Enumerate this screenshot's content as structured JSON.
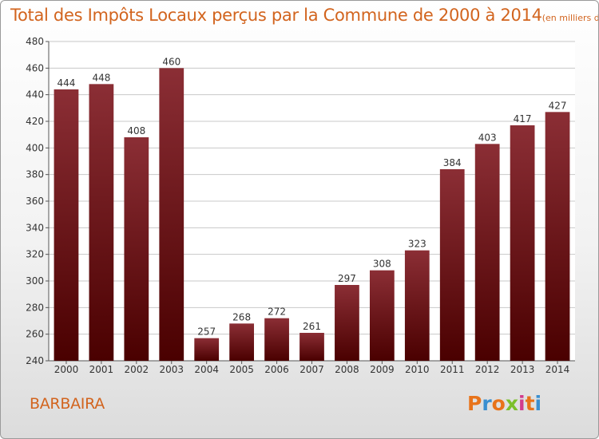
{
  "header": {
    "title": "Total des Impôts Locaux perçus par la Commune de 2000 à 2014",
    "unit": "(en milliers d'€)"
  },
  "footer": {
    "commune": "BARBAIRA",
    "logo_text": "Proxiti"
  },
  "colors": {
    "title": "#d2641e",
    "bar_top": "#8b2e35",
    "bar_bottom": "#4a0000",
    "logo_letters": [
      "#e8731a",
      "#3a8fd0",
      "#e8731a",
      "#7bbf2a",
      "#d23c8c",
      "#e8731a",
      "#3a8fd0"
    ]
  },
  "chart_data": {
    "type": "bar",
    "categories": [
      "2000",
      "2001",
      "2002",
      "2003",
      "2004",
      "2005",
      "2006",
      "2007",
      "2008",
      "2009",
      "2010",
      "2011",
      "2012",
      "2013",
      "2014"
    ],
    "values": [
      444,
      448,
      408,
      460,
      257,
      268,
      272,
      261,
      297,
      308,
      323,
      384,
      403,
      417,
      427
    ],
    "ylim": [
      240,
      480
    ],
    "yticks": [
      240,
      260,
      280,
      300,
      320,
      340,
      360,
      380,
      400,
      420,
      440,
      460,
      480
    ],
    "grid": true,
    "data_labels": true
  }
}
